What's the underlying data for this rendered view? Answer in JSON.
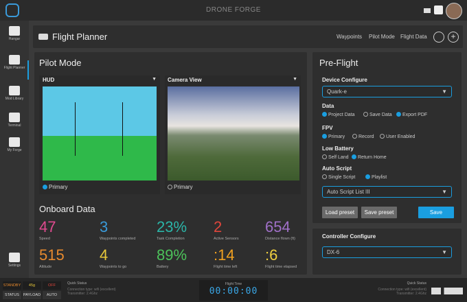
{
  "app_title": "DRONE FORGE",
  "sidebar": [
    "Hangar",
    "Flight Planner",
    "Mod Library",
    "Terminal",
    "My Forge",
    "Settings"
  ],
  "header": {
    "title": "Flight Planner",
    "nav": [
      "Waypoints",
      "Pilot Mode",
      "Flight Data"
    ]
  },
  "pilot_mode": {
    "title": "Pilot Mode",
    "hud": {
      "title": "HUD",
      "radio": "Primary"
    },
    "camera": {
      "title": "Camera View",
      "radio": "Primary"
    }
  },
  "onboard": {
    "title": "Onboard Data",
    "stats": [
      {
        "value": "47",
        "label": "Speed"
      },
      {
        "value": "3",
        "label": "Waypoints completed"
      },
      {
        "value": "23%",
        "label": "Task Completion"
      },
      {
        "value": "2",
        "label": "Active Sensors"
      },
      {
        "value": "654",
        "label": "Distance flown (ft)"
      },
      {
        "value": "515",
        "label": "Altitude"
      },
      {
        "value": "4",
        "label": "Waypoints to go"
      },
      {
        "value": "89%",
        "label": "Battery"
      },
      {
        "value": ":14",
        "label": "Flight time left"
      },
      {
        "value": ":6",
        "label": "Flight time elapsed"
      }
    ]
  },
  "preflight": {
    "title": "Pre-Flight",
    "device_label": "Device Configure",
    "device": "Quark-e",
    "groups": [
      {
        "label": "Data",
        "options": [
          "Project Data",
          "Save Data",
          "Export PDF"
        ]
      },
      {
        "label": "FPV",
        "options": [
          "Primary",
          "Record",
          "User Enabled"
        ]
      },
      {
        "label": "Low Battery",
        "options": [
          "Self Land",
          "Return Home"
        ]
      },
      {
        "label": "Auto Script",
        "options": [
          "Single Script",
          "Playlist"
        ]
      }
    ],
    "script_select": "Auto Script List III",
    "buttons": [
      "Load preset",
      "Save preset",
      "Save"
    ]
  },
  "controller": {
    "title": "Controller Configure",
    "select": "DX-6"
  },
  "status_bar": {
    "badges": [
      {
        "value": "STANDBY",
        "label": "STATUS"
      },
      {
        "value": "45g",
        "label": "PAYLOAD"
      },
      {
        "value": "OFF",
        "label": "AUTO"
      }
    ],
    "left": {
      "title": "Quick Status",
      "lines": [
        "Connection type: wifi (excellent)",
        "Transmitter: 2.4Ghz"
      ]
    },
    "flight_time": {
      "title": "Flight Time",
      "value": "00:00:00"
    },
    "right": {
      "title": "Quick Status",
      "lines": [
        "Connection type: wifi (excellent)",
        "Transmitter: 2.4Ghz"
      ]
    }
  }
}
